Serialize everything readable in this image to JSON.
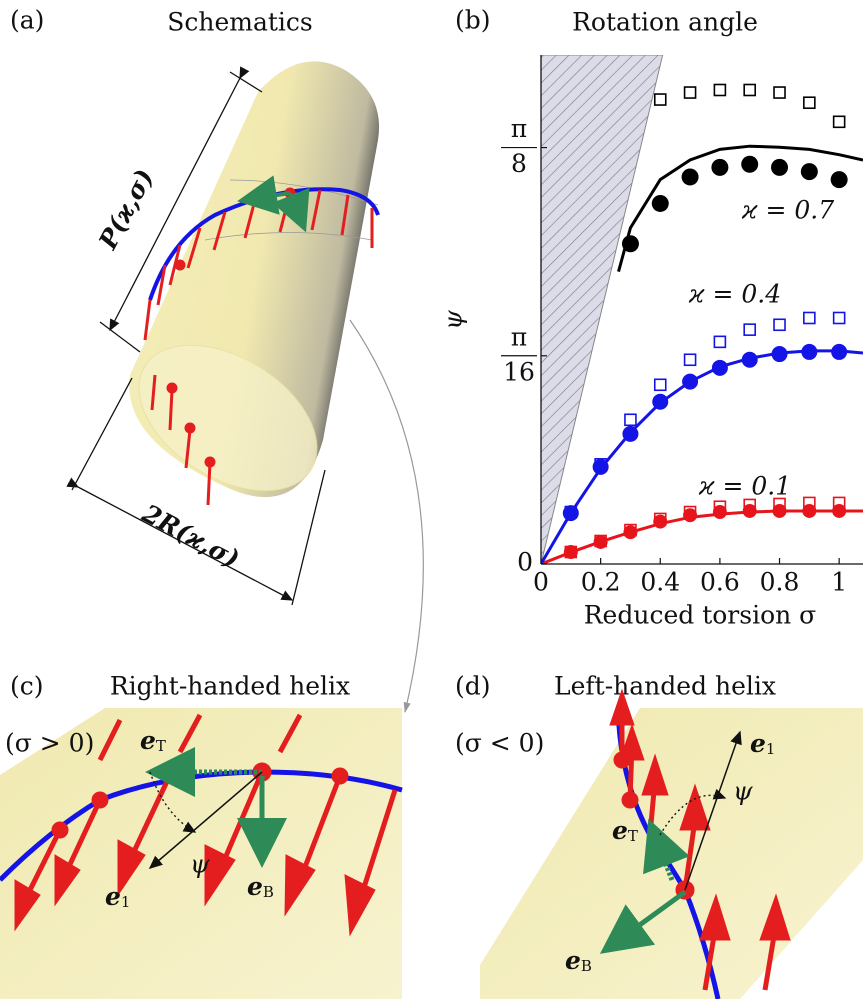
{
  "chart_data": {
    "type": "scatter-line",
    "panel_label": "(b)",
    "title": "Rotation angle",
    "x_label": "Reduced torsion σ",
    "y_label": "ψ",
    "xlim": [
      0,
      1.08
    ],
    "ylim": [
      0,
      0.48
    ],
    "xticks": [
      0,
      0.2,
      0.4,
      0.6,
      0.8,
      1
    ],
    "yticks": [
      0,
      {
        "value": 0.19635,
        "label": {
          "numerator": "π",
          "denominator": "16"
        }
      },
      {
        "value": 0.3927,
        "label": {
          "numerator": "π",
          "denominator": "8"
        }
      }
    ],
    "excluded_region": {
      "x": [
        0,
        0.408
      ],
      "values": [
        0,
        0.48
      ]
    },
    "series": [
      {
        "name": "ϰ = 0.1",
        "color": "#e8141c",
        "line": {
          "x": [
            0,
            0.1,
            0.2,
            0.3,
            0.4,
            0.5,
            0.6,
            0.7,
            0.8,
            0.9,
            1.0,
            1.08
          ],
          "values": [
            0,
            0.011,
            0.021,
            0.03,
            0.038,
            0.044,
            0.047,
            0.049,
            0.05,
            0.05,
            0.05,
            0.05
          ]
        },
        "squares": {
          "x": [
            0.1,
            0.2,
            0.3,
            0.4,
            0.5,
            0.6,
            0.7,
            0.8,
            0.9,
            1.0
          ],
          "values": [
            0.0113,
            0.0217,
            0.032,
            0.0425,
            0.049,
            0.054,
            0.0557,
            0.0566,
            0.0576,
            0.0576
          ]
        },
        "circles": {
          "x": [
            0.1,
            0.2,
            0.3,
            0.4,
            0.5,
            0.6,
            0.7,
            0.8,
            0.9,
            1.0
          ],
          "values": [
            0.0113,
            0.0208,
            0.03,
            0.04,
            0.046,
            0.049,
            0.05,
            0.05,
            0.05,
            0.05
          ]
        }
      },
      {
        "name": "ϰ = 0.4",
        "color": "#1414e6",
        "line": {
          "x": [
            0,
            0.1,
            0.2,
            0.3,
            0.4,
            0.5,
            0.6,
            0.7,
            0.8,
            0.9,
            1.0,
            1.08
          ],
          "values": [
            0,
            0.048,
            0.09,
            0.124,
            0.152,
            0.172,
            0.186,
            0.194,
            0.199,
            0.201,
            0.201,
            0.199
          ]
        },
        "squares": {
          "x": [
            0.1,
            0.2,
            0.3,
            0.4,
            0.5,
            0.6,
            0.7,
            0.8,
            0.9,
            1.0
          ],
          "values": [
            0.049,
            0.094,
            0.136,
            0.169,
            0.1926,
            0.2095,
            0.221,
            0.2256,
            0.232,
            0.232
          ]
        },
        "circles": {
          "x": [
            0.1,
            0.2,
            0.3,
            0.4,
            0.5,
            0.6,
            0.7,
            0.8,
            0.9,
            1.0
          ],
          "values": [
            0.048,
            0.0916,
            0.1227,
            0.153,
            0.172,
            0.185,
            0.1926,
            0.198,
            0.2,
            0.2
          ]
        }
      },
      {
        "name": "ϰ = 0.7",
        "color": "#000000",
        "line": {
          "x": [
            0.26,
            0.3,
            0.4,
            0.5,
            0.6,
            0.7,
            0.8,
            0.9,
            1.0,
            1.08
          ],
          "values": [
            0.2757,
            0.317,
            0.3625,
            0.381,
            0.391,
            0.394,
            0.393,
            0.391,
            0.386,
            0.381
          ]
        },
        "squares": {
          "x": [
            0.4,
            0.5,
            0.6,
            0.7,
            0.8,
            0.9,
            1.0
          ],
          "values": [
            0.438,
            0.4446,
            0.447,
            0.447,
            0.4446,
            0.435,
            0.417
          ]
        },
        "circles": {
          "x": [
            0.3,
            0.4,
            0.5,
            0.6,
            0.7,
            0.8,
            0.9,
            1.0
          ],
          "values": [
            0.302,
            0.34,
            0.365,
            0.374,
            0.377,
            0.374,
            0.37,
            0.3625
          ]
        }
      }
    ]
  },
  "panel_a": {
    "label": "(a)",
    "title": "Schematics",
    "pitch_label": "P(ϰ,σ)",
    "diameter_label": "2R(ϰ,σ)"
  },
  "panel_c": {
    "label": "(c)",
    "title": "Right-handed helix",
    "condition": "(σ > 0)",
    "e_t": {
      "symbol": "e",
      "subscript": "T"
    },
    "e_1": {
      "symbol": "e",
      "subscript": "1"
    },
    "e_b": {
      "symbol": "e",
      "subscript": "B"
    },
    "angle": "ψ"
  },
  "panel_d": {
    "label": "(d)",
    "title": "Left-handed helix",
    "condition": "(σ < 0)",
    "e_1": {
      "symbol": "e",
      "subscript": "1"
    },
    "e_t": {
      "symbol": "e",
      "subscript": "T"
    },
    "e_b": {
      "symbol": "e",
      "subscript": "B"
    },
    "angle": "ψ"
  }
}
